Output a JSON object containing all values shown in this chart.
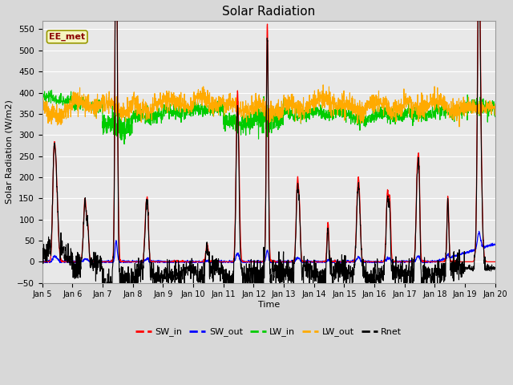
{
  "title": "Solar Radiation",
  "xlabel": "Time",
  "ylabel": "Solar Radiation (W/m2)",
  "annotation": "EE_met",
  "ylim": [
    -50,
    570
  ],
  "series_colors": {
    "SW_in": "#ff0000",
    "SW_out": "#0000ff",
    "LW_in": "#00cc00",
    "LW_out": "#ffaa00",
    "Rnet": "#000000"
  },
  "fig_bg_color": "#d8d8d8",
  "plot_bg_color": "#e8e8e8",
  "grid_color": "#ffffff",
  "legend_bg": "#ffffff"
}
